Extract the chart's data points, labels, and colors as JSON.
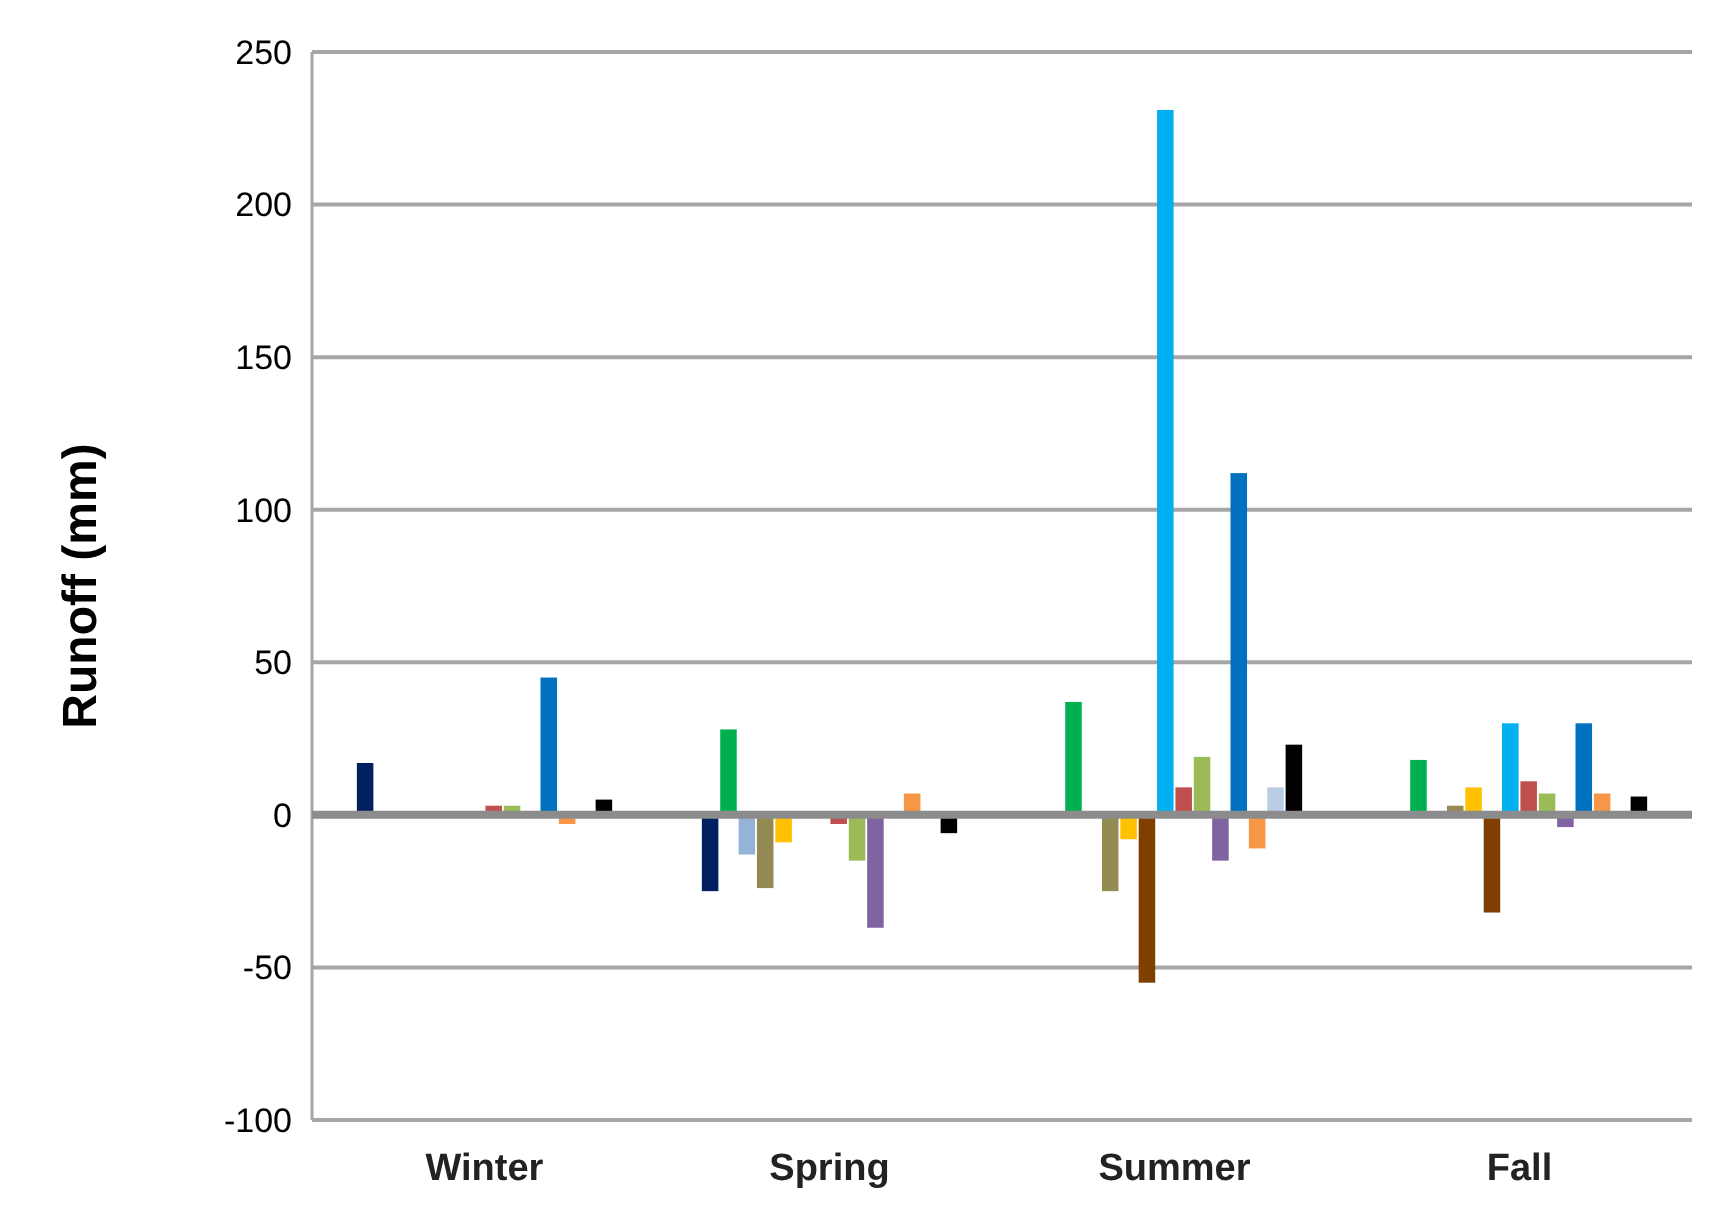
{
  "chart_data": {
    "type": "bar",
    "ylabel": "Runoff (mm)",
    "categories": [
      "Winter",
      "Spring",
      "Summer",
      "Fall"
    ],
    "ylim": [
      -100,
      250
    ],
    "yticks": [
      -100,
      -50,
      0,
      50,
      100,
      150,
      200,
      250
    ],
    "grid": "y",
    "series": [
      {
        "color": "#002060",
        "values": [
          17,
          -25,
          null,
          null
        ]
      },
      {
        "color": "#00b050",
        "values": [
          null,
          28,
          37,
          18
        ]
      },
      {
        "color": "#95b3d7",
        "values": [
          null,
          -13,
          null,
          null
        ]
      },
      {
        "color": "#948a54",
        "values": [
          null,
          -24,
          -25,
          3
        ]
      },
      {
        "color": "#ffc000",
        "values": [
          null,
          -9,
          -8,
          9
        ]
      },
      {
        "color": "#7f3f00",
        "values": [
          null,
          null,
          -55,
          -32
        ]
      },
      {
        "color": "#00b0f0",
        "values": [
          null,
          null,
          231,
          30
        ]
      },
      {
        "color": "#c0504d",
        "values": [
          3,
          -3,
          9,
          11
        ]
      },
      {
        "color": "#9bbb59",
        "values": [
          3,
          -15,
          19,
          7
        ]
      },
      {
        "color": "#8064a2",
        "values": [
          null,
          -37,
          -15,
          -4
        ]
      },
      {
        "color": "#0070c0",
        "values": [
          45,
          null,
          112,
          30
        ]
      },
      {
        "color": "#f79646",
        "values": [
          -3,
          7,
          -11,
          7
        ]
      },
      {
        "color": "#b9cde5",
        "values": [
          null,
          null,
          9,
          null
        ]
      },
      {
        "color": "#000000",
        "values": [
          5,
          -6,
          23,
          6
        ]
      }
    ]
  }
}
